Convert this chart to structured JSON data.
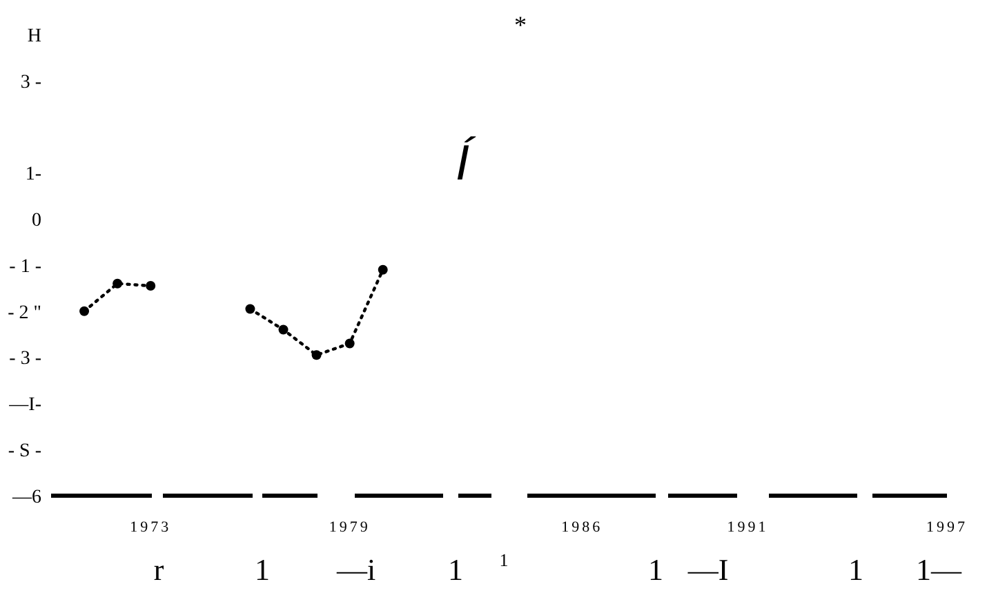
{
  "chart_data": {
    "type": "line",
    "x": [
      1971,
      1972,
      1973,
      1974,
      1975,
      1976,
      1977,
      1978,
      1979,
      1980
    ],
    "series": [
      {
        "color": "#000000",
        "values": [
          -2.0,
          -1.4,
          -1.45,
          null,
          null,
          -1.95,
          -2.4,
          -2.95,
          -2.7,
          -1.1
        ]
      }
    ],
    "xlim": [
      1970,
      1997
    ],
    "ylim": [
      -6,
      4
    ],
    "xticks": [
      1973,
      1979,
      1986,
      1991,
      1997
    ],
    "yticks": [
      {
        "value": 4,
        "label": "H"
      },
      {
        "value": 3,
        "label": "3 -"
      },
      {
        "value": 1,
        "label": "1-"
      },
      0,
      {
        "value": -1,
        "label": "- 1 -"
      },
      {
        "value": -2,
        "label": "- 2 \""
      },
      {
        "value": -3,
        "label": "- 3 -"
      },
      {
        "value": -4,
        "label": "—I-"
      },
      {
        "value": -5,
        "label": "- S -"
      },
      {
        "value": -6,
        "label": "—6"
      }
    ],
    "annotations": [
      "*",
      "Í",
      "r",
      "1",
      "—i",
      "1",
      "1",
      "1",
      "—I",
      "1",
      "1—"
    ],
    "grid": false,
    "marker": "circle",
    "line_style": "dotted"
  }
}
